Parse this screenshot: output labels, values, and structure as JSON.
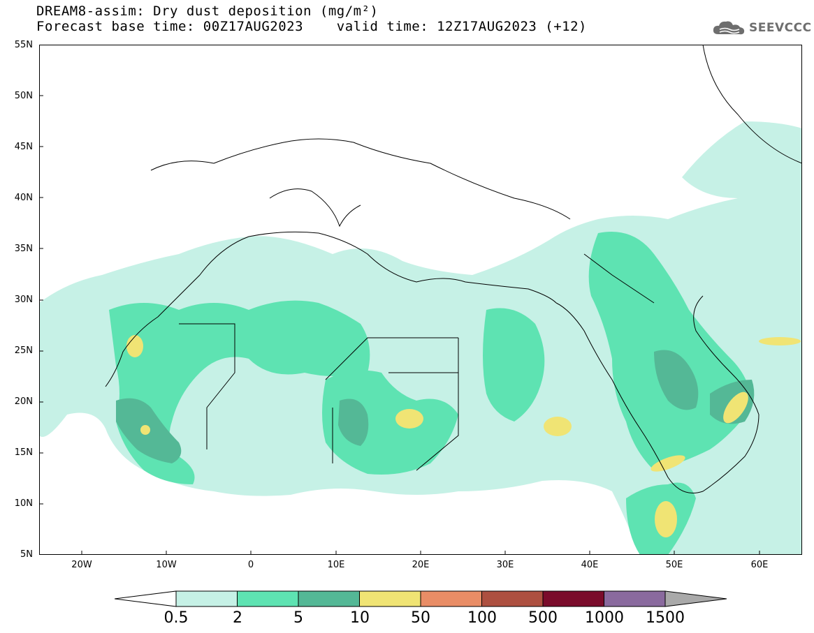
{
  "header": {
    "title_line1": "DREAM8-assim: Dry dust deposition (mg/m²)",
    "title_line2": "Forecast base time: 00Z17AUG2023    valid time: 12Z17AUG2023 (+12)",
    "logo_text": "SEEVCCC"
  },
  "map": {
    "lat_labels": [
      "55N",
      "50N",
      "45N",
      "40N",
      "35N",
      "30N",
      "25N",
      "20N",
      "15N",
      "10N",
      "5N"
    ],
    "lon_labels": [
      "20W",
      "10W",
      "0",
      "10E",
      "20E",
      "30E",
      "40E",
      "50E",
      "60E"
    ],
    "extent": {
      "lon_min": -25,
      "lon_max": 65,
      "lat_min": 5,
      "lat_max": 55
    },
    "colors": {
      "land_border": "#000000",
      "water": "#ffffff"
    }
  },
  "legend": {
    "labels": [
      "0.5",
      "2",
      "5",
      "10",
      "50",
      "100",
      "500",
      "1000",
      "1500"
    ],
    "colors": [
      "#c6f1e6",
      "#5ee3b2",
      "#54b896",
      "#f0e474",
      "#e98d66",
      "#ad5040",
      "#7a0c2b",
      "#8a6a9e",
      "#a9a9a9"
    ]
  }
}
